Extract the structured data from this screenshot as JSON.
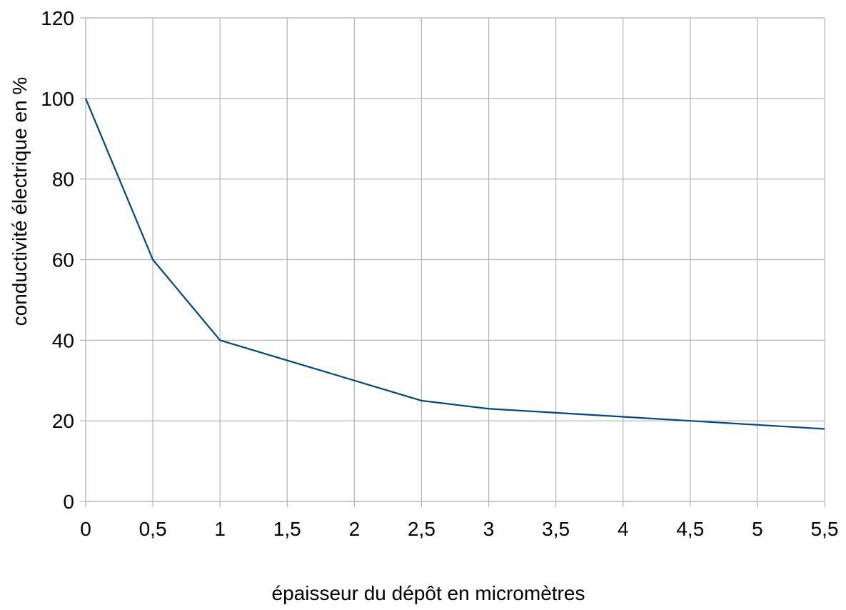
{
  "chart_data": {
    "type": "line",
    "title": "",
    "xlabel": "épaisseur du dépôt en micromètres",
    "ylabel": "conductivité électrique en %",
    "xlim": [
      0,
      5.5
    ],
    "ylim": [
      0,
      120
    ],
    "x_ticks": [
      0,
      0.5,
      1,
      1.5,
      2,
      2.5,
      3,
      3.5,
      4,
      4.5,
      5,
      5.5
    ],
    "x_tick_labels": [
      "0",
      "0,5",
      "1",
      "1,5",
      "2",
      "2,5",
      "3",
      "3,5",
      "4",
      "4,5",
      "5",
      "5,5"
    ],
    "y_ticks": [
      0,
      20,
      40,
      60,
      80,
      100,
      120
    ],
    "y_tick_labels": [
      "0",
      "20",
      "40",
      "60",
      "80",
      "100",
      "120"
    ],
    "grid": true,
    "legend": "none",
    "series": [
      {
        "color": "#004586",
        "x": [
          0,
          0.5,
          1,
          1.5,
          2,
          2.5,
          3,
          3.5,
          4,
          4.5,
          5,
          5.5
        ],
        "y": [
          100,
          60,
          40,
          35,
          30,
          25,
          23,
          22,
          21,
          20,
          19,
          18
        ]
      }
    ]
  },
  "colors": {
    "grid": "#b3b3b3",
    "axis": "#b3b3b3",
    "line": "#004586"
  }
}
